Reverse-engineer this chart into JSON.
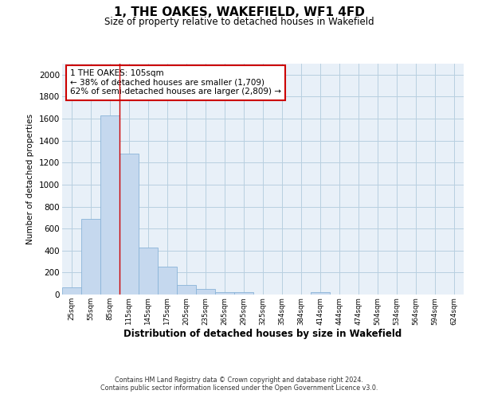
{
  "title": "1, THE OAKES, WAKEFIELD, WF1 4FD",
  "subtitle": "Size of property relative to detached houses in Wakefield",
  "xlabel": "Distribution of detached houses by size in Wakefield",
  "ylabel": "Number of detached properties",
  "bar_color": "#c5d8ee",
  "bar_edgecolor": "#8ab4d8",
  "background_color": "#ffffff",
  "ax_facecolor": "#e8f0f8",
  "grid_color": "#b8cfe0",
  "categories": [
    "25sqm",
    "55sqm",
    "85sqm",
    "115sqm",
    "145sqm",
    "175sqm",
    "205sqm",
    "235sqm",
    "265sqm",
    "295sqm",
    "325sqm",
    "354sqm",
    "384sqm",
    "414sqm",
    "444sqm",
    "474sqm",
    "504sqm",
    "534sqm",
    "564sqm",
    "594sqm",
    "624sqm"
  ],
  "values": [
    65,
    690,
    1630,
    1280,
    430,
    255,
    85,
    50,
    25,
    20,
    0,
    0,
    0,
    20,
    0,
    0,
    0,
    0,
    0,
    0,
    0
  ],
  "ylim": [
    0,
    2100
  ],
  "yticks": [
    0,
    200,
    400,
    600,
    800,
    1000,
    1200,
    1400,
    1600,
    1800,
    2000
  ],
  "annotation_text": "1 THE OAKES: 105sqm\n← 38% of detached houses are smaller (1,709)\n62% of semi-detached houses are larger (2,809) →",
  "annotation_box_color": "#ffffff",
  "annotation_box_edgecolor": "#cc0000",
  "property_line_index": 3,
  "footer_line1": "Contains HM Land Registry data © Crown copyright and database right 2024.",
  "footer_line2": "Contains public sector information licensed under the Open Government Licence v3.0."
}
